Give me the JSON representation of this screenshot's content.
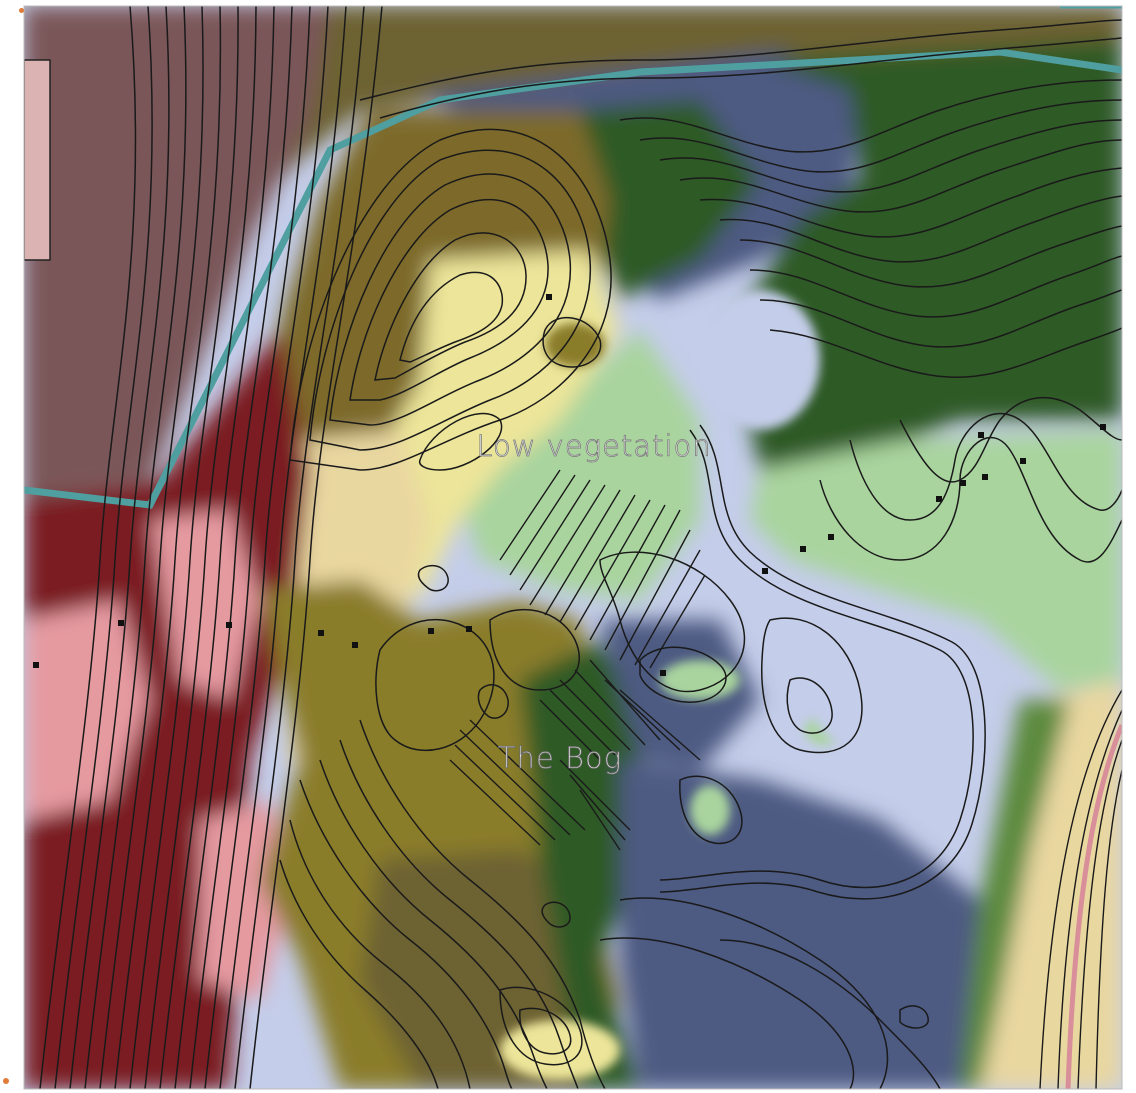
{
  "map": {
    "labels": {
      "low_vegetation": "Low vegetation",
      "the_bog": "The Bog"
    },
    "legend_colors": {
      "dark_red_forest": "#7a1f24",
      "pink_zone": "#e59aa0",
      "mauve_zone": "#7a5659",
      "olive_forest": "#7d6a2a",
      "khaki_zone": "#8a7d2a",
      "pale_yellow": "#ece59a",
      "tan": "#e9d7a0",
      "light_green": "#a9d49e",
      "dark_green": "#2e5a26",
      "lavender": "#c4cde9",
      "slate_blue": "#4d5a82",
      "teal_boundary": "#4f9fa0",
      "contour_line": "#1a1a1a"
    }
  }
}
